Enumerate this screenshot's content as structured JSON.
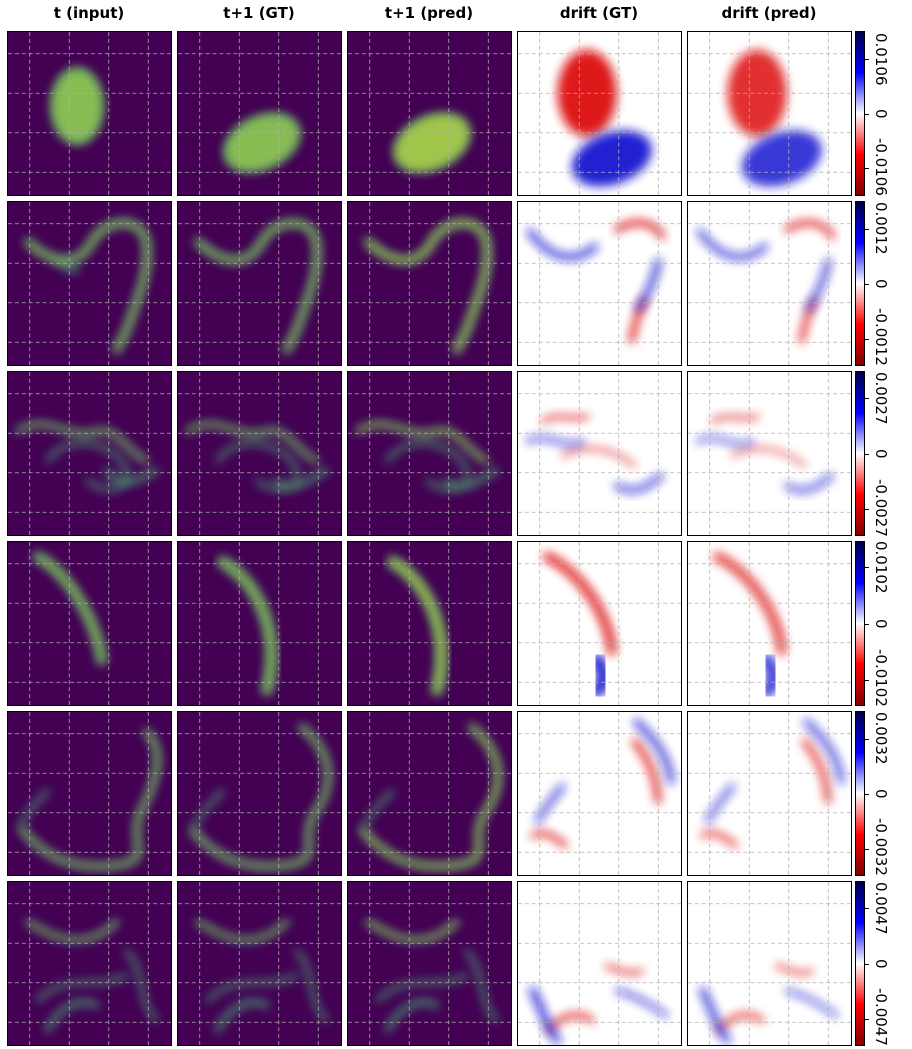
{
  "columns": [
    "t (input)",
    "t+1 (GT)",
    "t+1 (pred)",
    "drift (GT)",
    "drift (pred)"
  ],
  "colormaps": {
    "density": "viridis",
    "drift": "seismic"
  },
  "colors": {
    "viridis_low": "#440154",
    "viridis_high": "#fde725",
    "drift_pos": "#00008b",
    "drift_neg": "#8b0000",
    "grid": "#b0b0b0"
  },
  "chart_data": {
    "type": "heatmap",
    "rows": [
      {
        "structure": "compact blob translating down-right",
        "colorbar_ticks": [
          "0.0106",
          "0",
          "-0.0106"
        ],
        "colorbar_range": [
          -0.016,
          0.016
        ]
      },
      {
        "structure": "thin hook-shaped filament",
        "colorbar_ticks": [
          "0.0012",
          "0",
          "-0.0012"
        ],
        "colorbar_range": [
          -0.0018,
          0.0018
        ]
      },
      {
        "structure": "tangled filaments with loop",
        "colorbar_ticks": [
          "0.0027",
          "0",
          "-0.0027"
        ],
        "colorbar_range": [
          -0.004,
          0.004
        ]
      },
      {
        "structure": "single crescent arc",
        "colorbar_ticks": [
          "0.0102",
          "0",
          "-0.0102"
        ],
        "colorbar_range": [
          -0.015,
          0.015
        ]
      },
      {
        "structure": "long wavy filament with left tip",
        "colorbar_ticks": [
          "0.0032",
          "0",
          "-0.0032"
        ],
        "colorbar_range": [
          -0.0048,
          0.0048
        ]
      },
      {
        "structure": "diffuse multi-filament field",
        "colorbar_ticks": [
          "0.0047",
          "0",
          "-0.0047"
        ],
        "colorbar_range": [
          -0.007,
          0.007
        ]
      }
    ]
  }
}
